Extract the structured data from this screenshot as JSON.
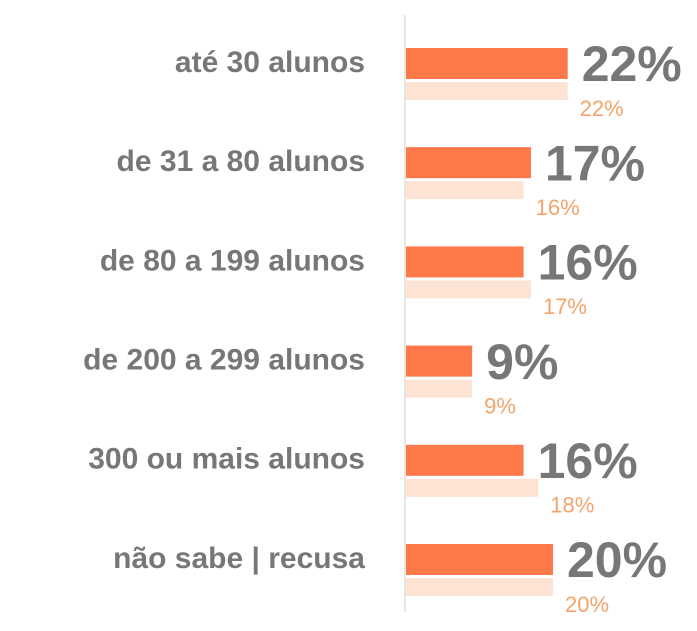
{
  "chart_data": {
    "type": "bar",
    "orientation": "horizontal",
    "categories": [
      "até 30 alunos",
      "de 31 a 80 alunos",
      "de 80 a 199 alunos",
      "de 200 a 299 alunos",
      "300 ou mais alunos",
      "não sabe | recusa"
    ],
    "series": [
      {
        "color": "#ff7849",
        "values": [
          22,
          17,
          16,
          9,
          16,
          20
        ],
        "value_labels": [
          "22%",
          "17%",
          "16%",
          "9%",
          "16%",
          "20%"
        ]
      },
      {
        "color": "#fde3d4",
        "values": [
          22,
          16,
          17,
          9,
          18,
          20
        ],
        "value_labels": [
          "22%",
          "16%",
          "17%",
          "9%",
          "18%",
          "20%"
        ]
      }
    ]
  }
}
